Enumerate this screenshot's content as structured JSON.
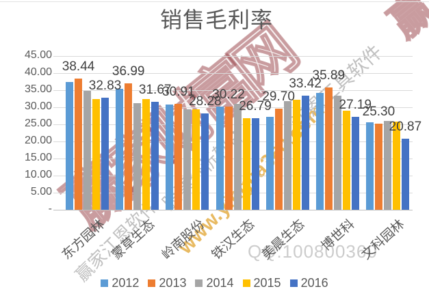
{
  "chart_data": {
    "type": "bar",
    "title": "销售毛利率",
    "categories": [
      "东方园林",
      "蒙草生态",
      "岭南股份",
      "铁汉生态",
      "美晨生态",
      "博世科",
      "文科园林"
    ],
    "series": [
      {
        "name": "2012",
        "color": "#5B9BD5",
        "values": [
          37.4,
          35.5,
          30.9,
          30.3,
          27.2,
          34.3,
          25.6
        ]
      },
      {
        "name": "2013",
        "color": "#ED7D31",
        "values": [
          38.44,
          36.99,
          30.91,
          30.22,
          29.7,
          35.89,
          25.3
        ],
        "data_labels": [
          "38.44",
          "36.99",
          "30.91",
          "30.22",
          "29.70",
          "35.89",
          "25.30"
        ]
      },
      {
        "name": "2014",
        "color": "#A5A5A5",
        "values": [
          34.8,
          31.3,
          29.5,
          31.0,
          31.9,
          33.5,
          26.1
        ]
      },
      {
        "name": "2015",
        "color": "#FFC000",
        "values": [
          32.5,
          32.4,
          29.4,
          26.9,
          32.2,
          29.0,
          25.8
        ]
      },
      {
        "name": "2016",
        "color": "#4472C4",
        "values": [
          32.83,
          31.67,
          28.28,
          26.79,
          33.42,
          27.19,
          20.87
        ],
        "data_labels": [
          "32.83",
          "31.67",
          "28.28",
          "26.79",
          "33.42",
          "27.19",
          "20.87"
        ]
      }
    ],
    "y_axis": {
      "tick_labels": [
        "45.00",
        "40.00",
        "35.00",
        "30.00",
        "25.00",
        "20.00",
        "15.00",
        "10.00",
        "5.00",
        "-"
      ],
      "tick_values": [
        45,
        40,
        35,
        30,
        25,
        20,
        15,
        10,
        5,
        0
      ],
      "min": 0,
      "max": 45
    },
    "legend": [
      "2012",
      "2013",
      "2014",
      "2015",
      "2016"
    ],
    "grid": true,
    "legend_position": "bottom"
  },
  "watermarks": {
    "brand": "赢家财富网",
    "brand_corner": "赢",
    "url": "www.yingjia360.com",
    "qq": "QQ:100800360",
    "gray_line_1": "赢家江恩软件",
    "gray_line_2": "股票分析软件",
    "gray_line_3": "江恩工具软件"
  },
  "colors": {
    "series_2012": "#5B9BD5",
    "series_2013": "#ED7D31",
    "series_2014": "#A5A5A5",
    "series_2015": "#FFC000",
    "series_2016": "#4472C4",
    "gridline": "#D9D9D9",
    "axis_line": "#BFBFBF",
    "text": "#595959",
    "data_label_text": "#404040",
    "watermark_red": "#9B484E",
    "watermark_yellow": "#E2A93B",
    "watermark_gray": "#C6C6C6"
  }
}
